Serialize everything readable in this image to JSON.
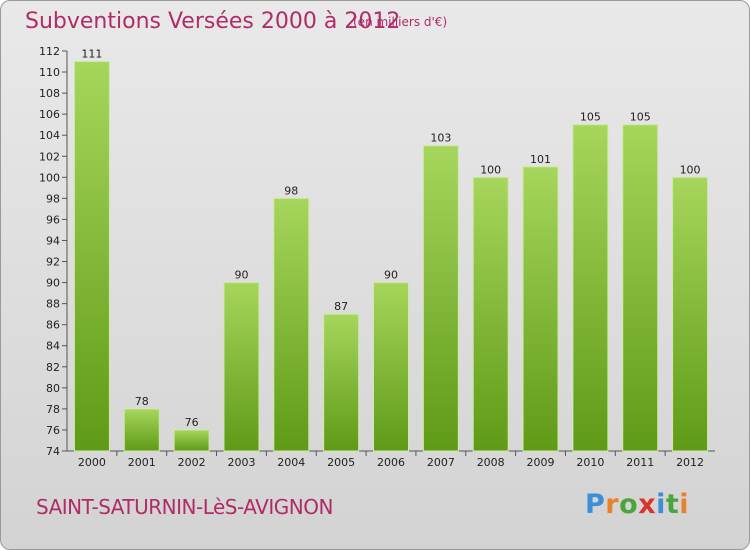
{
  "header": {
    "title": "Subventions Versées 2000 à 2012",
    "unit": "(en milliers d'€)"
  },
  "footer": {
    "commune": "SAINT-SATURNIN-LèS-AVIGNON",
    "logo_text": "Proxiti"
  },
  "colors": {
    "title": "#b12b68",
    "bar_light": "#a6d65c",
    "bar_dark": "#5f9a17",
    "logo": [
      "#3b8fd6",
      "#e8812a",
      "#4aa63c",
      "#d6342c",
      "#3b8fd6",
      "#4aa63c",
      "#e8812a"
    ]
  },
  "chart_data": {
    "type": "bar",
    "title": "Subventions Versées 2000 à 2012",
    "categories": [
      "2000",
      "2001",
      "2002",
      "2003",
      "2004",
      "2005",
      "2006",
      "2007",
      "2008",
      "2009",
      "2010",
      "2011",
      "2012"
    ],
    "values": [
      111,
      78,
      76,
      90,
      98,
      87,
      90,
      103,
      100,
      101,
      105,
      105,
      100
    ],
    "ylim": [
      74,
      112
    ],
    "ytick_step": 2,
    "grid": false,
    "data_labels": true
  }
}
